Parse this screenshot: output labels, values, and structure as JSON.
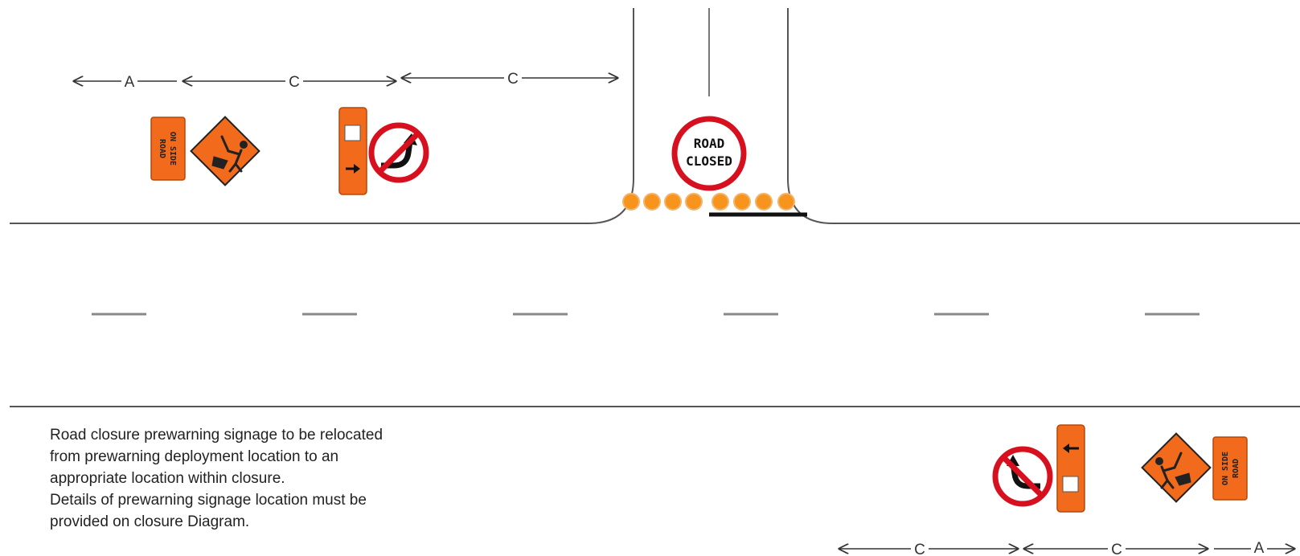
{
  "dimensions": {
    "top_row": [
      "A",
      "C",
      "C"
    ],
    "bottom_row": [
      "C",
      "C",
      "A"
    ]
  },
  "signs": {
    "road_closed": [
      "ROAD",
      "CLOSED"
    ],
    "on_side_road": [
      "ON SIDE",
      "ROAD"
    ]
  },
  "note": {
    "paragraph_1": "Road closure prewarning signage to be relocated from prewarning deployment location to an appropriate location within closure.",
    "paragraph_2": "Details of prewarning signage location must be provided on closure Diagram."
  },
  "colors": {
    "sign_orange": "#f26a1b",
    "prohibition_red": "#d6101e",
    "cone_orange": "#f7941d",
    "road_line": "#555555"
  }
}
